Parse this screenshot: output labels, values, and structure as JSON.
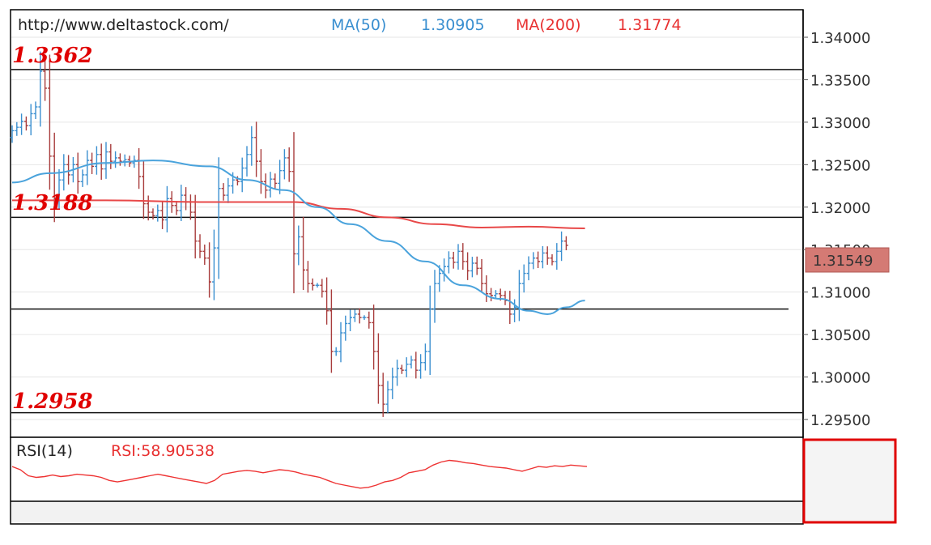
{
  "header": {
    "source": "http://www.deltastock.com/",
    "ma50_label": "MA(50)",
    "ma50_value": "1.30905",
    "ma200_label": "MA(200)",
    "ma200_value": "1.31774"
  },
  "levels": {
    "high": "1.3362",
    "mid": "1.3188",
    "low": "1.2958"
  },
  "current_price": "1.31549",
  "rsi": {
    "label": "RSI(14)",
    "value_label": "RSI:58.90538"
  },
  "colors": {
    "up": "#3a8fd0",
    "down": "#a83c3c",
    "ma50": "#4aa3dc",
    "ma200": "#e84848",
    "rsi": "#ee3333",
    "level_text": "#e00000",
    "price_box": "#d47a74",
    "rsi_axis_border": "#e00000",
    "frame": "#000000"
  },
  "chart_data": {
    "type": "candlestick",
    "y_axis": {
      "ticks": [
        "1.34000",
        "1.33500",
        "1.33000",
        "1.32500",
        "1.32000",
        "1.31500",
        "1.31000",
        "1.30500",
        "1.30000",
        "1.29500"
      ],
      "ylim": [
        1.2958,
        1.3408
      ]
    },
    "horizontal_levels": [
      1.3362,
      1.3188,
      1.308,
      1.2958
    ],
    "ohlc_close": [
      1.329,
      1.3294,
      1.3301,
      1.3296,
      1.331,
      1.3318,
      1.336,
      1.334,
      1.326,
      1.321,
      1.3232,
      1.325,
      1.3238,
      1.325,
      1.323,
      1.3238,
      1.3255,
      1.3248,
      1.3262,
      1.3245,
      1.3265,
      1.3254,
      1.3258,
      1.3254,
      1.3256,
      1.3252,
      1.3255,
      1.3236,
      1.3204,
      1.3194,
      1.319,
      1.3196,
      1.3185,
      1.321,
      1.3202,
      1.3196,
      1.3214,
      1.3206,
      1.3194,
      1.316,
      1.3148,
      1.314,
      1.3112,
      1.3152,
      1.3222,
      1.3214,
      1.3225,
      1.3232,
      1.323,
      1.3246,
      1.3262,
      1.3282,
      1.3254,
      1.323,
      1.322,
      1.3233,
      1.3228,
      1.3243,
      1.3258,
      1.3242,
      1.3145,
      1.3165,
      1.3126,
      1.311,
      1.3108,
      1.3108,
      1.3101,
      1.3078,
      1.303,
      1.303,
      1.3052,
      1.3063,
      1.307,
      1.3074,
      1.307,
      1.307,
      1.3064,
      1.303,
      1.299,
      1.2968,
      1.2985,
      1.3,
      1.301,
      1.3008,
      1.3015,
      1.302,
      1.3008,
      1.3017,
      1.303,
      1.308,
      1.311,
      1.3122,
      1.313,
      1.314,
      1.3135,
      1.3148,
      1.3136,
      1.3125,
      1.3134,
      1.3128,
      1.311,
      1.3098,
      1.3096,
      1.3098,
      1.3096,
      1.309,
      1.3074,
      1.3082,
      1.311,
      1.3122,
      1.3134,
      1.314,
      1.3136,
      1.3146,
      1.314,
      1.3136,
      1.3148,
      1.316,
      1.3155
    ],
    "ma50": [
      [
        0,
        1.3229
      ],
      [
        8,
        1.324
      ],
      [
        20,
        1.3252
      ],
      [
        30,
        1.3255
      ],
      [
        42,
        1.3248
      ],
      [
        50,
        1.3232
      ],
      [
        58,
        1.322
      ],
      [
        65,
        1.32
      ],
      [
        72,
        1.318
      ],
      [
        80,
        1.316
      ],
      [
        88,
        1.3136
      ],
      [
        96,
        1.3108
      ],
      [
        104,
        1.3092
      ],
      [
        110,
        1.3078
      ],
      [
        114,
        1.3074
      ],
      [
        118,
        1.3082
      ],
      [
        122,
        1.309
      ]
    ],
    "ma200": [
      [
        0,
        1.3208
      ],
      [
        20,
        1.3208
      ],
      [
        40,
        1.3206
      ],
      [
        60,
        1.3206
      ],
      [
        70,
        1.3198
      ],
      [
        80,
        1.3188
      ],
      [
        90,
        1.318
      ],
      [
        100,
        1.3176
      ],
      [
        110,
        1.3177
      ],
      [
        122,
        1.3175
      ]
    ],
    "rsi_series": [
      58,
      54,
      46,
      44,
      45,
      47,
      45,
      46,
      48,
      47,
      46,
      44,
      40,
      38,
      40,
      42,
      44,
      46,
      48,
      46,
      44,
      42,
      40,
      38,
      36,
      40,
      48,
      50,
      52,
      53,
      52,
      50,
      52,
      54,
      53,
      51,
      48,
      46,
      44,
      40,
      36,
      34,
      32,
      30,
      31,
      34,
      38,
      40,
      44,
      50,
      52,
      54,
      60,
      64,
      66,
      65,
      63,
      62,
      60,
      58,
      57,
      56,
      54,
      52,
      55,
      58,
      57,
      59,
      58,
      60,
      59,
      58
    ]
  }
}
